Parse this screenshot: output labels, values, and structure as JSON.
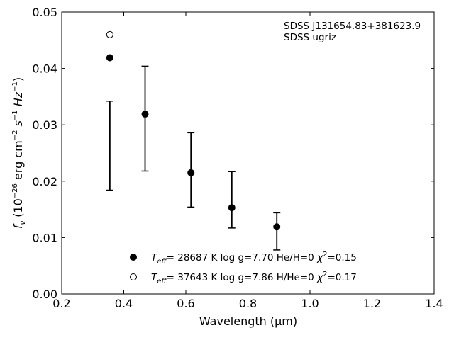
{
  "chart_data": {
    "type": "scatter",
    "xlabel": "Wavelength (µm)",
    "ylabel_parts": {
      "f": "f",
      "nu": "ν",
      "open": " (10",
      "exp1": "−26",
      "mid": " erg cm",
      "exp2": "−2",
      "s": " s",
      "exp3": "−1",
      "hz": " Hz",
      "exp4": "−1",
      "close": ")"
    },
    "xlim": [
      0.2,
      1.4
    ],
    "ylim": [
      0.0,
      0.05
    ],
    "x_ticks": [
      0.2,
      0.4,
      0.6,
      0.8,
      1.0,
      1.2,
      1.4
    ],
    "x_tick_labels": [
      "0.2",
      "0.4",
      "0.6",
      "0.8",
      "1.0",
      "1.2",
      "1.4"
    ],
    "y_ticks": [
      0.0,
      0.01,
      0.02,
      0.03,
      0.04,
      0.05
    ],
    "y_tick_labels": [
      "0.00",
      "0.01",
      "0.02",
      "0.03",
      "0.04",
      "0.05"
    ],
    "annotation": [
      "SDSS J131654.83+381623.9",
      "SDSS ugriz"
    ],
    "observed": {
      "x": [
        0.3551,
        0.4686,
        0.6165,
        0.7481,
        0.8931
      ],
      "y": [
        0.0263,
        0.0311,
        0.022,
        0.0167,
        0.0111
      ],
      "yerr": [
        0.0079,
        0.0093,
        0.0066,
        0.005,
        0.0033
      ]
    },
    "series": [
      {
        "marker": "filled",
        "x": [
          0.3551,
          0.4686,
          0.6165,
          0.7481,
          0.8931
        ],
        "y": [
          0.0419,
          0.0319,
          0.0215,
          0.0153,
          0.0119
        ],
        "legend": {
          "teff": "T",
          "eff": "eff",
          "teff_value": "= 28687 K  log g=7.70  He/H=0  ",
          "chi": "χ",
          "chi_exp": "2",
          "chi_value": "=0.15"
        }
      },
      {
        "marker": "open",
        "x": [
          0.3551
        ],
        "y": [
          0.046
        ],
        "legend": {
          "teff": "T",
          "eff": "eff",
          "teff_value": "= 37643 K  log g=7.86  H/He=0  ",
          "chi": "χ",
          "chi_exp": "2",
          "chi_value": "=0.17"
        }
      }
    ],
    "legend_position": "lower-center",
    "grid": false
  }
}
